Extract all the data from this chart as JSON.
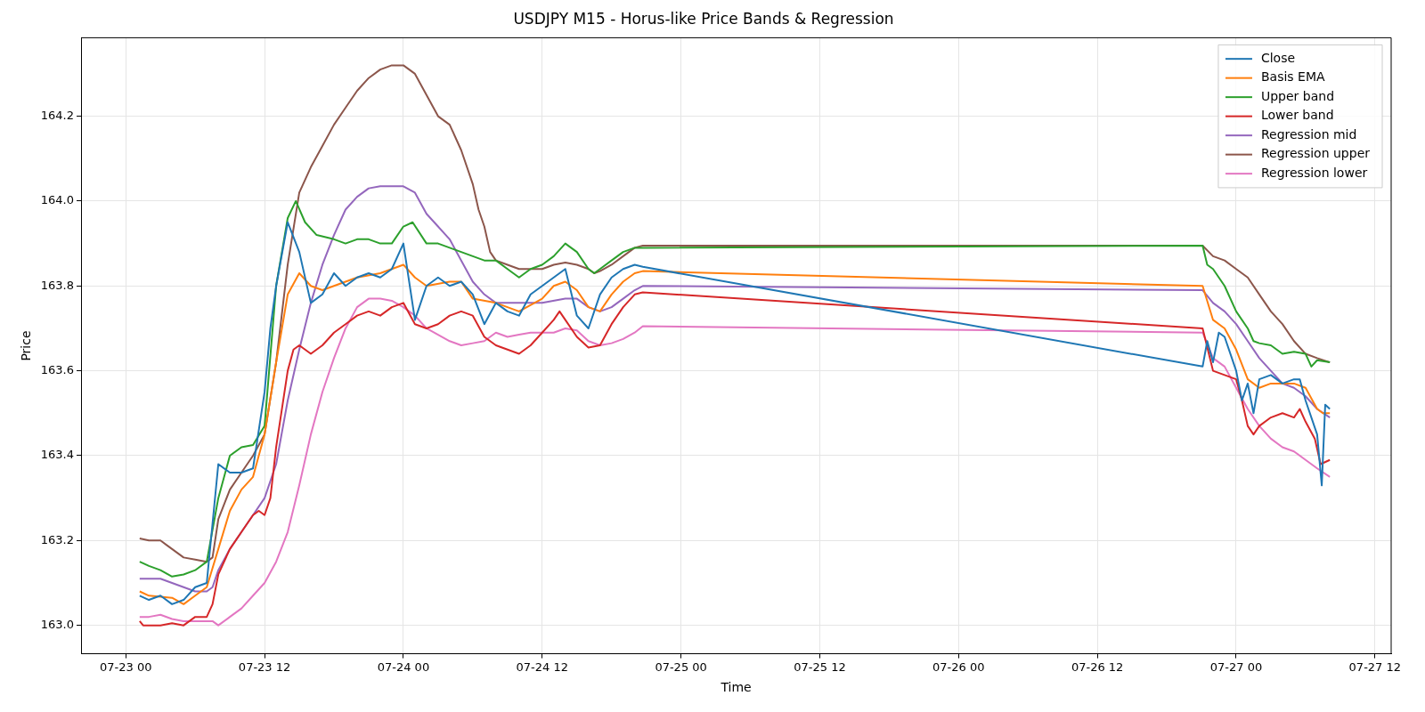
{
  "chart_data": {
    "type": "line",
    "title": "USDJPY M15 - Horus-like Price Bands & Regression",
    "xlabel": "Time",
    "ylabel": "Price",
    "xlim": [
      "--07-22T20:08",
      "--07-27T13:24"
    ],
    "ylim": [
      162.933,
      164.385
    ],
    "xticks": [
      {
        "value": "--07-23T00:00",
        "label": "07-23 00"
      },
      {
        "value": "--07-23T12:00",
        "label": "07-23 12"
      },
      {
        "value": "--07-24T00:00",
        "label": "07-24 00"
      },
      {
        "value": "--07-24T12:00",
        "label": "07-24 12"
      },
      {
        "value": "--07-25T00:00",
        "label": "07-25 00"
      },
      {
        "value": "--07-25T12:00",
        "label": "07-25 12"
      },
      {
        "value": "--07-26T00:00",
        "label": "07-26 00"
      },
      {
        "value": "--07-26T12:00",
        "label": "07-26 12"
      },
      {
        "value": "--07-27T00:00",
        "label": "07-27 00"
      },
      {
        "value": "--07-27T12:00",
        "label": "07-27 12"
      }
    ],
    "yticks": [
      {
        "value": 163,
        "label": "163.0"
      },
      163.2,
      163.4,
      163.6,
      163.8,
      {
        "value": 164,
        "label": "164.0"
      },
      164.2
    ],
    "grid": true,
    "legend": "top right",
    "marker": "none",
    "line_style": "solid",
    "series": [
      {
        "name": "Close",
        "color": "#1f77b4",
        "x": [
          "--07-23T01:12",
          "--07-23T02:00",
          "--07-23T03:00",
          "--07-23T04:00",
          "--07-23T05:00",
          "--07-23T06:00",
          "--07-23T07:00",
          "--07-23T08:00",
          "--07-23T09:00",
          "--07-23T10:00",
          "--07-23T11:00",
          "--07-23T12:00",
          "--07-23T12:30",
          "--07-23T13:00",
          "--07-23T14:00",
          "--07-23T15:00",
          "--07-23T16:00",
          "--07-23T17:00",
          "--07-23T18:00",
          "--07-23T19:00",
          "--07-23T20:00",
          "--07-23T21:00",
          "--07-23T22:00",
          "--07-23T23:00",
          "--07-24T00:00",
          "--07-24T01:00",
          "--07-24T02:00",
          "--07-24T03:00",
          "--07-24T04:00",
          "--07-24T05:00",
          "--07-24T06:00",
          "--07-24T07:00",
          "--07-24T08:00",
          "--07-24T09:00",
          "--07-24T10:00",
          "--07-24T11:00",
          "--07-24T12:00",
          "--07-24T13:00",
          "--07-24T14:00",
          "--07-24T15:00",
          "--07-24T16:00",
          "--07-24T17:00",
          "--07-24T18:00",
          "--07-24T19:00",
          "--07-24T20:00",
          "--07-24T20:42",
          "--07-26T21:06",
          "--07-26T21:30",
          "--07-26T22:00",
          "--07-26T22:30",
          "--07-26T23:00",
          "--07-27T00:00",
          "--07-27T00:30",
          "--07-27T01:00",
          "--07-27T01:30",
          "--07-27T02:00",
          "--07-27T03:00",
          "--07-27T04:00",
          "--07-27T05:00",
          "--07-27T05:30",
          "--07-27T06:00",
          "--07-27T07:00",
          "--07-27T07:24",
          "--07-27T07:42",
          "--07-27T08:06"
        ],
        "values": [
          163.07,
          163.06,
          163.07,
          163.05,
          163.06,
          163.09,
          163.1,
          163.38,
          163.36,
          163.36,
          163.37,
          163.55,
          163.7,
          163.8,
          163.95,
          163.88,
          163.76,
          163.78,
          163.83,
          163.8,
          163.82,
          163.83,
          163.82,
          163.84,
          163.9,
          163.72,
          163.8,
          163.82,
          163.8,
          163.81,
          163.78,
          163.71,
          163.76,
          163.74,
          163.73,
          163.78,
          163.8,
          163.82,
          163.84,
          163.73,
          163.7,
          163.78,
          163.82,
          163.84,
          163.85,
          163.845,
          163.61,
          163.67,
          163.62,
          163.69,
          163.68,
          163.6,
          163.53,
          163.57,
          163.5,
          163.58,
          163.59,
          163.57,
          163.58,
          163.58,
          163.53,
          163.45,
          163.33,
          163.52,
          163.51
        ]
      },
      {
        "name": "Basis EMA",
        "color": "#ff7f0e",
        "x": [
          "--07-23T01:12",
          "--07-23T02:00",
          "--07-23T04:00",
          "--07-23T05:00",
          "--07-23T06:00",
          "--07-23T07:00",
          "--07-23T08:00",
          "--07-23T09:00",
          "--07-23T10:00",
          "--07-23T11:00",
          "--07-23T12:00",
          "--07-23T13:00",
          "--07-23T14:00",
          "--07-23T15:00",
          "--07-23T16:00",
          "--07-23T17:00",
          "--07-23T18:00",
          "--07-23T20:00",
          "--07-23T22:00",
          "--07-24T00:00",
          "--07-24T01:00",
          "--07-24T02:00",
          "--07-24T04:00",
          "--07-24T05:00",
          "--07-24T06:00",
          "--07-24T08:00",
          "--07-24T10:00",
          "--07-24T12:00",
          "--07-24T13:00",
          "--07-24T14:00",
          "--07-24T15:00",
          "--07-24T16:00",
          "--07-24T17:00",
          "--07-24T18:00",
          "--07-24T19:00",
          "--07-24T20:00",
          "--07-24T20:42",
          "--07-26T21:06",
          "--07-26T22:00",
          "--07-26T23:00",
          "--07-27T00:00",
          "--07-27T01:00",
          "--07-27T02:00",
          "--07-27T03:00",
          "--07-27T04:00",
          "--07-27T05:00",
          "--07-27T06:00",
          "--07-27T07:00",
          "--07-27T07:30",
          "--07-27T08:06"
        ],
        "values": [
          163.08,
          163.07,
          163.065,
          163.05,
          163.07,
          163.09,
          163.18,
          163.27,
          163.32,
          163.35,
          163.45,
          163.62,
          163.78,
          163.83,
          163.8,
          163.79,
          163.8,
          163.82,
          163.83,
          163.85,
          163.82,
          163.8,
          163.81,
          163.81,
          163.77,
          163.76,
          163.74,
          163.77,
          163.8,
          163.81,
          163.79,
          163.75,
          163.74,
          163.78,
          163.81,
          163.83,
          163.835,
          163.8,
          163.72,
          163.7,
          163.65,
          163.58,
          163.56,
          163.57,
          163.57,
          163.57,
          163.56,
          163.51,
          163.5,
          163.5
        ]
      },
      {
        "name": "Upper band",
        "color": "#2ca02c",
        "x": [
          "--07-23T01:12",
          "--07-23T02:00",
          "--07-23T03:00",
          "--07-23T04:00",
          "--07-23T05:00",
          "--07-23T06:00",
          "--07-23T07:00",
          "--07-23T08:00",
          "--07-23T09:00",
          "--07-23T10:00",
          "--07-23T11:00",
          "--07-23T12:00",
          "--07-23T13:00",
          "--07-23T14:00",
          "--07-23T14:42",
          "--07-23T15:30",
          "--07-23T16:30",
          "--07-23T18:00",
          "--07-23T19:00",
          "--07-23T20:00",
          "--07-23T21:00",
          "--07-23T22:00",
          "--07-23T23:00",
          "--07-24T00:00",
          "--07-24T00:48",
          "--07-24T02:00",
          "--07-24T03:00",
          "--07-24T04:00",
          "--07-24T05:00",
          "--07-24T06:00",
          "--07-24T07:00",
          "--07-24T08:00",
          "--07-24T09:00",
          "--07-24T10:00",
          "--07-24T11:00",
          "--07-24T12:00",
          "--07-24T13:00",
          "--07-24T14:00",
          "--07-24T15:00",
          "--07-24T16:00",
          "--07-24T16:30",
          "--07-24T17:00",
          "--07-24T18:00",
          "--07-24T19:00",
          "--07-24T20:00",
          "--07-24T20:42",
          "--07-26T21:06",
          "--07-26T21:30",
          "--07-26T22:00",
          "--07-26T23:00",
          "--07-27T00:00",
          "--07-27T01:00",
          "--07-27T01:30",
          "--07-27T02:00",
          "--07-27T03:00",
          "--07-27T04:00",
          "--07-27T05:00",
          "--07-27T06:00",
          "--07-27T06:30",
          "--07-27T07:00",
          "--07-27T08:06"
        ],
        "values": [
          163.15,
          163.14,
          163.13,
          163.115,
          163.12,
          163.13,
          163.15,
          163.3,
          163.4,
          163.42,
          163.425,
          163.47,
          163.8,
          163.96,
          164.0,
          163.95,
          163.92,
          163.91,
          163.9,
          163.91,
          163.91,
          163.9,
          163.9,
          163.94,
          163.95,
          163.9,
          163.9,
          163.89,
          163.88,
          163.87,
          163.86,
          163.86,
          163.84,
          163.82,
          163.84,
          163.85,
          163.87,
          163.9,
          163.88,
          163.84,
          163.83,
          163.84,
          163.86,
          163.88,
          163.89,
          163.89,
          163.895,
          163.85,
          163.84,
          163.8,
          163.74,
          163.7,
          163.67,
          163.665,
          163.66,
          163.64,
          163.645,
          163.64,
          163.61,
          163.625,
          163.62
        ]
      },
      {
        "name": "Lower band",
        "color": "#d62728",
        "x": [
          "--07-23T01:12",
          "--07-23T01:30",
          "--07-23T03:00",
          "--07-23T04:00",
          "--07-23T05:00",
          "--07-23T06:00",
          "--07-23T07:00",
          "--07-23T07:30",
          "--07-23T08:00",
          "--07-23T09:00",
          "--07-23T10:00",
          "--07-23T11:00",
          "--07-23T11:30",
          "--07-23T12:00",
          "--07-23T12:30",
          "--07-23T13:00",
          "--07-23T14:00",
          "--07-23T14:30",
          "--07-23T15:00",
          "--07-23T16:00",
          "--07-23T17:00",
          "--07-23T18:00",
          "--07-23T19:00",
          "--07-23T20:00",
          "--07-23T21:00",
          "--07-23T22:00",
          "--07-23T23:00",
          "--07-24T00:00",
          "--07-24T01:00",
          "--07-24T02:00",
          "--07-24T03:00",
          "--07-24T04:00",
          "--07-24T05:00",
          "--07-24T06:00",
          "--07-24T07:00",
          "--07-24T08:00",
          "--07-24T09:00",
          "--07-24T10:00",
          "--07-24T11:00",
          "--07-24T12:00",
          "--07-24T13:00",
          "--07-24T13:30",
          "--07-24T14:00",
          "--07-24T15:00",
          "--07-24T16:00",
          "--07-24T17:00",
          "--07-24T18:00",
          "--07-24T19:00",
          "--07-24T20:00",
          "--07-24T20:42",
          "--07-26T21:06",
          "--07-26T22:00",
          "--07-26T23:00",
          "--07-27T00:00",
          "--07-27T00:30",
          "--07-27T01:00",
          "--07-27T01:30",
          "--07-27T02:00",
          "--07-27T03:00",
          "--07-27T04:00",
          "--07-27T05:00",
          "--07-27T05:30",
          "--07-27T06:00",
          "--07-27T06:48",
          "--07-27T07:18",
          "--07-27T08:06"
        ],
        "values": [
          163.01,
          163.0,
          163.0,
          163.005,
          163.0,
          163.02,
          163.02,
          163.05,
          163.12,
          163.18,
          163.22,
          163.26,
          163.27,
          163.26,
          163.3,
          163.42,
          163.6,
          163.65,
          163.66,
          163.64,
          163.66,
          163.69,
          163.71,
          163.73,
          163.74,
          163.73,
          163.75,
          163.76,
          163.71,
          163.7,
          163.71,
          163.73,
          163.74,
          163.73,
          163.68,
          163.66,
          163.65,
          163.64,
          163.66,
          163.69,
          163.72,
          163.74,
          163.72,
          163.68,
          163.655,
          163.66,
          163.71,
          163.75,
          163.78,
          163.785,
          163.7,
          163.6,
          163.59,
          163.58,
          163.53,
          163.47,
          163.45,
          163.47,
          163.49,
          163.5,
          163.49,
          163.51,
          163.48,
          163.44,
          163.38,
          163.39
        ]
      },
      {
        "name": "Regression mid",
        "color": "#9467bd",
        "x": [
          "--07-23T01:12",
          "--07-23T03:00",
          "--07-23T04:00",
          "--07-23T05:00",
          "--07-23T06:00",
          "--07-23T07:00",
          "--07-23T07:30",
          "--07-23T08:00",
          "--07-23T09:00",
          "--07-23T10:00",
          "--07-23T11:00",
          "--07-23T12:00",
          "--07-23T13:00",
          "--07-23T14:00",
          "--07-23T15:00",
          "--07-23T16:00",
          "--07-23T17:00",
          "--07-23T18:00",
          "--07-23T19:00",
          "--07-23T20:00",
          "--07-23T21:00",
          "--07-23T22:00",
          "--07-23T23:00",
          "--07-24T00:00",
          "--07-24T01:00",
          "--07-24T02:00",
          "--07-24T03:00",
          "--07-24T04:00",
          "--07-24T05:00",
          "--07-24T06:00",
          "--07-24T07:00",
          "--07-24T08:00",
          "--07-24T10:00",
          "--07-24T12:00",
          "--07-24T14:00",
          "--07-24T15:00",
          "--07-24T16:00",
          "--07-24T17:00",
          "--07-24T18:00",
          "--07-24T19:00",
          "--07-24T20:00",
          "--07-24T20:42",
          "--07-26T21:06",
          "--07-26T22:00",
          "--07-26T23:00",
          "--07-27T00:00",
          "--07-27T01:00",
          "--07-27T02:00",
          "--07-27T03:00",
          "--07-27T04:00",
          "--07-27T05:00",
          "--07-27T06:00",
          "--07-27T07:00",
          "--07-27T08:06"
        ],
        "values": [
          163.11,
          163.11,
          163.1,
          163.09,
          163.08,
          163.08,
          163.09,
          163.13,
          163.18,
          163.22,
          163.26,
          163.3,
          163.38,
          163.53,
          163.65,
          163.76,
          163.85,
          163.92,
          163.98,
          164.01,
          164.03,
          164.035,
          164.035,
          164.035,
          164.02,
          163.97,
          163.94,
          163.91,
          163.86,
          163.81,
          163.78,
          163.76,
          163.76,
          163.76,
          163.77,
          163.77,
          163.75,
          163.74,
          163.75,
          163.77,
          163.79,
          163.8,
          163.79,
          163.76,
          163.74,
          163.71,
          163.67,
          163.63,
          163.6,
          163.57,
          163.56,
          163.54,
          163.51,
          163.49
        ]
      },
      {
        "name": "Regression upper",
        "color": "#8c564b",
        "x": [
          "--07-23T01:12",
          "--07-23T02:00",
          "--07-23T03:00",
          "--07-23T03:30",
          "--07-23T04:00",
          "--07-23T05:00",
          "--07-23T06:00",
          "--07-23T07:00",
          "--07-23T07:30",
          "--07-23T08:00",
          "--07-23T09:00",
          "--07-23T10:00",
          "--07-23T11:00",
          "--07-23T12:00",
          "--07-23T13:00",
          "--07-23T14:00",
          "--07-23T15:00",
          "--07-23T16:00",
          "--07-23T17:00",
          "--07-23T18:00",
          "--07-23T19:00",
          "--07-23T20:00",
          "--07-23T21:00",
          "--07-23T22:00",
          "--07-23T23:00",
          "--07-24T00:00",
          "--07-24T01:00",
          "--07-24T02:00",
          "--07-24T03:00",
          "--07-24T04:00",
          "--07-24T05:00",
          "--07-24T06:00",
          "--07-24T06:30",
          "--07-24T07:00",
          "--07-24T07:30",
          "--07-24T08:00",
          "--07-24T09:00",
          "--07-24T10:00",
          "--07-24T12:00",
          "--07-24T13:00",
          "--07-24T14:00",
          "--07-24T15:00",
          "--07-24T16:00",
          "--07-24T16:30",
          "--07-24T17:00",
          "--07-24T18:00",
          "--07-24T19:00",
          "--07-24T20:00",
          "--07-24T20:42",
          "--07-26T21:06",
          "--07-26T22:00",
          "--07-26T23:00",
          "--07-27T00:00",
          "--07-27T01:00",
          "--07-27T02:00",
          "--07-27T03:00",
          "--07-27T04:00",
          "--07-27T05:00",
          "--07-27T06:00",
          "--07-27T07:00",
          "--07-27T08:06"
        ],
        "values": [
          163.205,
          163.2,
          163.2,
          163.19,
          163.18,
          163.16,
          163.155,
          163.15,
          163.16,
          163.25,
          163.32,
          163.36,
          163.4,
          163.45,
          163.62,
          163.85,
          164.02,
          164.08,
          164.13,
          164.18,
          164.22,
          164.26,
          164.29,
          164.31,
          164.32,
          164.32,
          164.3,
          164.25,
          164.2,
          164.18,
          164.12,
          164.04,
          163.98,
          163.94,
          163.88,
          163.86,
          163.85,
          163.84,
          163.84,
          163.85,
          163.855,
          163.85,
          163.84,
          163.83,
          163.835,
          163.85,
          163.87,
          163.89,
          163.895,
          163.895,
          163.87,
          163.86,
          163.84,
          163.82,
          163.78,
          163.74,
          163.71,
          163.67,
          163.64,
          163.63,
          163.62
        ]
      },
      {
        "name": "Regression lower",
        "color": "#e377c2",
        "x": [
          "--07-23T01:12",
          "--07-23T02:00",
          "--07-23T03:00",
          "--07-23T04:00",
          "--07-23T05:00",
          "--07-23T06:00",
          "--07-23T07:00",
          "--07-23T07:30",
          "--07-23T08:00",
          "--07-23T09:00",
          "--07-23T10:00",
          "--07-23T11:00",
          "--07-23T12:00",
          "--07-23T13:00",
          "--07-23T14:00",
          "--07-23T15:00",
          "--07-23T16:00",
          "--07-23T17:00",
          "--07-23T18:00",
          "--07-23T19:00",
          "--07-23T20:00",
          "--07-23T21:00",
          "--07-23T22:00",
          "--07-23T23:00",
          "--07-24T00:00",
          "--07-24T01:00",
          "--07-24T02:00",
          "--07-24T03:00",
          "--07-24T04:00",
          "--07-24T05:00",
          "--07-24T06:00",
          "--07-24T07:00",
          "--07-24T08:00",
          "--07-24T09:00",
          "--07-24T10:00",
          "--07-24T11:00",
          "--07-24T12:00",
          "--07-24T13:00",
          "--07-24T14:00",
          "--07-24T15:00",
          "--07-24T16:00",
          "--07-24T17:00",
          "--07-24T18:00",
          "--07-24T19:00",
          "--07-24T20:00",
          "--07-24T20:42",
          "--07-26T21:06",
          "--07-26T22:00",
          "--07-26T23:00",
          "--07-27T00:00",
          "--07-27T01:00",
          "--07-27T02:00",
          "--07-27T03:00",
          "--07-27T04:00",
          "--07-27T05:00",
          "--07-27T06:00",
          "--07-27T07:00",
          "--07-27T08:06"
        ],
        "values": [
          163.02,
          163.02,
          163.025,
          163.015,
          163.01,
          163.01,
          163.01,
          163.01,
          163.0,
          163.02,
          163.04,
          163.07,
          163.1,
          163.15,
          163.22,
          163.33,
          163.45,
          163.55,
          163.63,
          163.7,
          163.75,
          163.77,
          163.77,
          163.765,
          163.75,
          163.73,
          163.7,
          163.685,
          163.67,
          163.66,
          163.665,
          163.67,
          163.69,
          163.68,
          163.685,
          163.69,
          163.69,
          163.69,
          163.7,
          163.695,
          163.67,
          163.66,
          163.665,
          163.675,
          163.69,
          163.705,
          163.69,
          163.63,
          163.61,
          163.56,
          163.51,
          163.47,
          163.44,
          163.42,
          163.41,
          163.39,
          163.37,
          163.35
        ]
      }
    ]
  }
}
